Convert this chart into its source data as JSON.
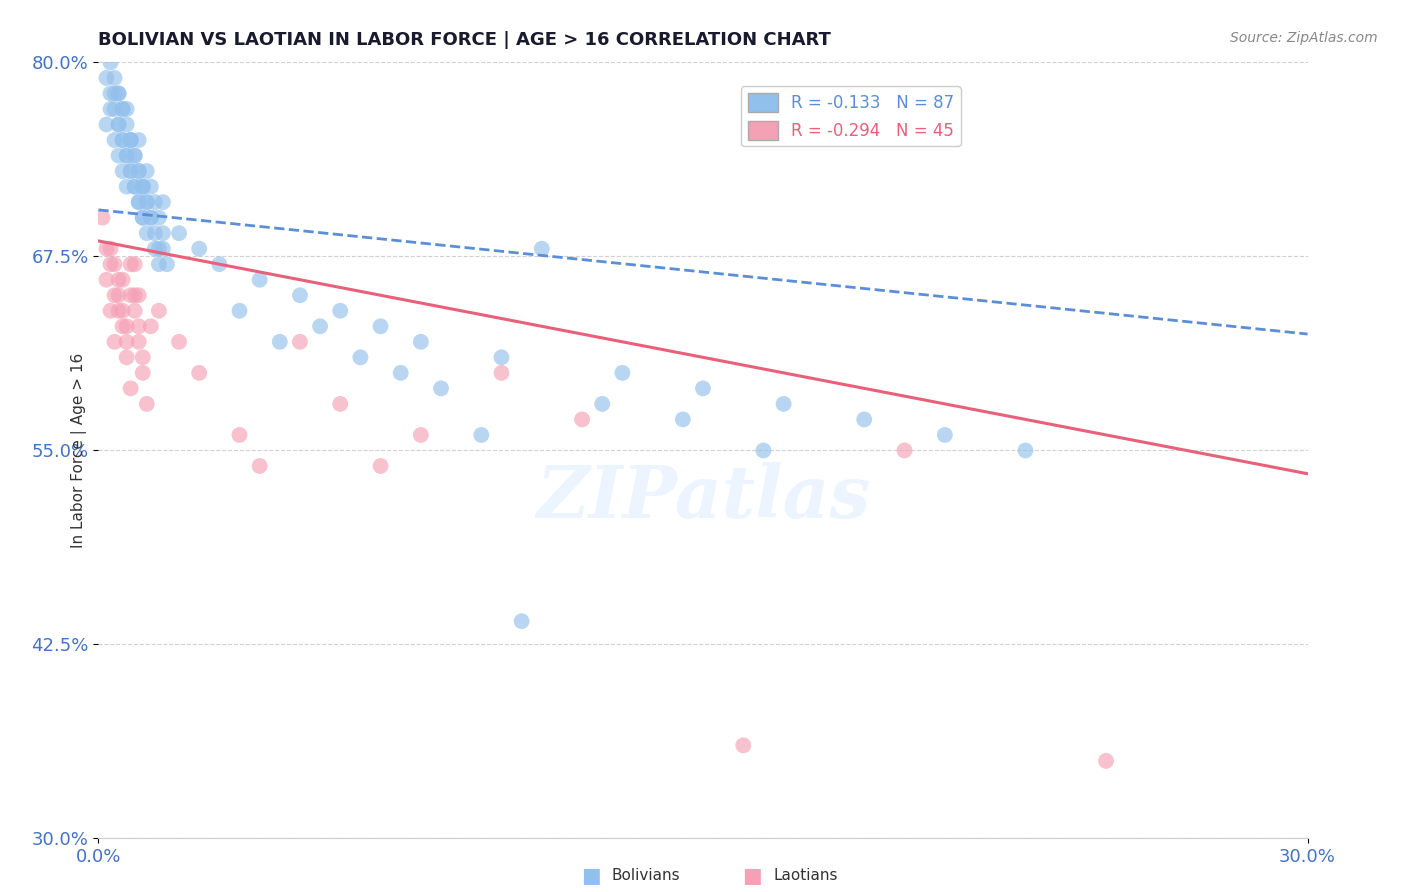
{
  "title": "BOLIVIAN VS LAOTIAN IN LABOR FORCE | AGE > 16 CORRELATION CHART",
  "source_text": "Source: ZipAtlas.com",
  "ylabel": "In Labor Force | Age > 16",
  "xlim": [
    0.0,
    0.3
  ],
  "ylim": [
    0.3,
    0.8
  ],
  "yticks": [
    0.3,
    0.425,
    0.55,
    0.675,
    0.8
  ],
  "ytick_labels": [
    "30.0%",
    "42.5%",
    "55.0%",
    "67.5%",
    "80.0%"
  ],
  "xticks": [
    0.0,
    0.3
  ],
  "xtick_labels": [
    "0.0%",
    "30.0%"
  ],
  "bolivian_color": "#92C0EC",
  "laotian_color": "#F4A0B5",
  "trend_bolivian_color": "#5B8ED6",
  "trend_laotian_color": "#E8607A",
  "R_bolivian": -0.133,
  "N_bolivian": 87,
  "R_laotian": -0.294,
  "N_laotian": 45,
  "trend_bolivian_x0": 0.0,
  "trend_bolivian_y0": 0.705,
  "trend_bolivian_x1": 0.3,
  "trend_bolivian_y1": 0.625,
  "trend_laotian_x0": 0.0,
  "trend_laotian_y0": 0.685,
  "trend_laotian_x1": 0.3,
  "trend_laotian_y1": 0.535,
  "bolivian_x": [
    0.002,
    0.003,
    0.004,
    0.004,
    0.005,
    0.005,
    0.006,
    0.006,
    0.007,
    0.007,
    0.007,
    0.008,
    0.008,
    0.009,
    0.009,
    0.01,
    0.01,
    0.01,
    0.011,
    0.011,
    0.012,
    0.012,
    0.013,
    0.013,
    0.014,
    0.014,
    0.015,
    0.015,
    0.016,
    0.016,
    0.002,
    0.003,
    0.004,
    0.005,
    0.005,
    0.006,
    0.006,
    0.007,
    0.008,
    0.008,
    0.009,
    0.01,
    0.011,
    0.011,
    0.012,
    0.013,
    0.014,
    0.015,
    0.016,
    0.017,
    0.003,
    0.004,
    0.005,
    0.006,
    0.007,
    0.008,
    0.009,
    0.01,
    0.011,
    0.012,
    0.025,
    0.03,
    0.04,
    0.05,
    0.06,
    0.07,
    0.08,
    0.1,
    0.11,
    0.13,
    0.15,
    0.17,
    0.19,
    0.21,
    0.23,
    0.02,
    0.035,
    0.045,
    0.055,
    0.065,
    0.075,
    0.085,
    0.095,
    0.105,
    0.125,
    0.145,
    0.165
  ],
  "bolivian_y": [
    0.76,
    0.77,
    0.78,
    0.75,
    0.74,
    0.76,
    0.73,
    0.75,
    0.72,
    0.74,
    0.77,
    0.73,
    0.75,
    0.72,
    0.74,
    0.71,
    0.73,
    0.75,
    0.7,
    0.72,
    0.71,
    0.73,
    0.7,
    0.72,
    0.69,
    0.71,
    0.68,
    0.7,
    0.69,
    0.71,
    0.79,
    0.78,
    0.77,
    0.76,
    0.78,
    0.75,
    0.77,
    0.74,
    0.73,
    0.75,
    0.72,
    0.71,
    0.7,
    0.72,
    0.69,
    0.7,
    0.68,
    0.67,
    0.68,
    0.67,
    0.8,
    0.79,
    0.78,
    0.77,
    0.76,
    0.75,
    0.74,
    0.73,
    0.72,
    0.71,
    0.68,
    0.67,
    0.66,
    0.65,
    0.64,
    0.63,
    0.62,
    0.61,
    0.68,
    0.6,
    0.59,
    0.58,
    0.57,
    0.56,
    0.55,
    0.69,
    0.64,
    0.62,
    0.63,
    0.61,
    0.6,
    0.59,
    0.56,
    0.44,
    0.58,
    0.57,
    0.55
  ],
  "laotian_x": [
    0.001,
    0.002,
    0.003,
    0.004,
    0.005,
    0.006,
    0.007,
    0.008,
    0.009,
    0.01,
    0.002,
    0.003,
    0.004,
    0.005,
    0.006,
    0.007,
    0.008,
    0.009,
    0.01,
    0.011,
    0.003,
    0.004,
    0.005,
    0.006,
    0.007,
    0.008,
    0.009,
    0.01,
    0.011,
    0.012,
    0.013,
    0.015,
    0.02,
    0.025,
    0.035,
    0.05,
    0.06,
    0.08,
    0.1,
    0.12,
    0.16,
    0.2,
    0.25,
    0.04,
    0.07
  ],
  "laotian_y": [
    0.7,
    0.68,
    0.67,
    0.65,
    0.64,
    0.66,
    0.63,
    0.65,
    0.67,
    0.65,
    0.66,
    0.64,
    0.62,
    0.66,
    0.64,
    0.62,
    0.67,
    0.65,
    0.63,
    0.61,
    0.68,
    0.67,
    0.65,
    0.63,
    0.61,
    0.59,
    0.64,
    0.62,
    0.6,
    0.58,
    0.63,
    0.64,
    0.62,
    0.6,
    0.56,
    0.62,
    0.58,
    0.56,
    0.6,
    0.57,
    0.36,
    0.55,
    0.35,
    0.54,
    0.54
  ],
  "watermark_text": "ZIPatlas",
  "grid_color": "#CCCCCC",
  "background_color": "#FFFFFF"
}
